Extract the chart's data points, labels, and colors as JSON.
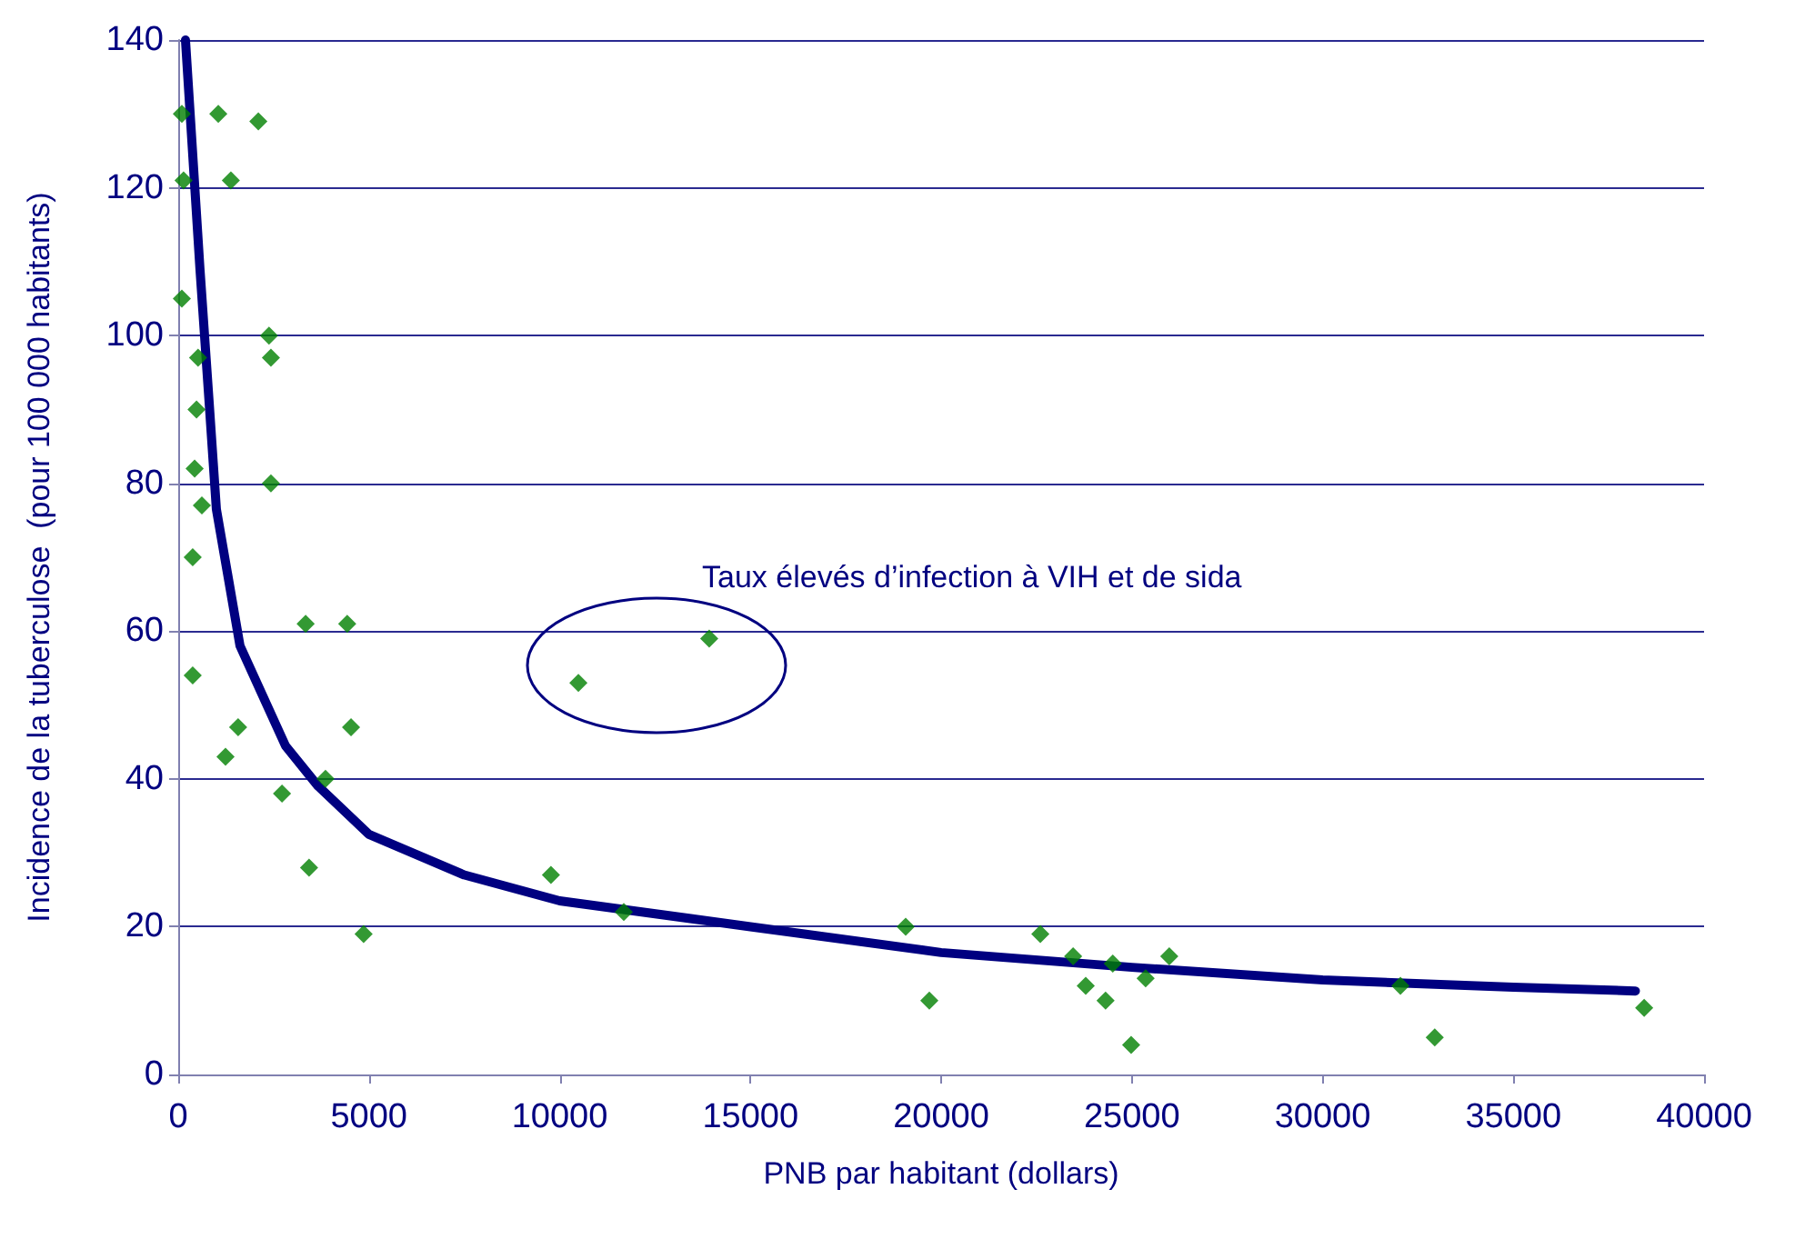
{
  "chart_data": {
    "type": "scatter",
    "xlabel": "PNB par habitant (dollars)",
    "ylabel": "Incidence de la tuberculose  (pour 100 000 habitants)",
    "xlim": [
      0,
      40000
    ],
    "xticks": [
      0,
      5000,
      10000,
      15000,
      20000,
      25000,
      30000,
      35000,
      40000
    ],
    "ylim": [
      0,
      140
    ],
    "yticks": [
      0,
      20,
      40,
      60,
      80,
      100,
      120,
      140
    ],
    "grid": "y",
    "annotations": [
      "Taux élevés d’infection à VIH et de sida"
    ],
    "series": [
      {
        "color": "#008000",
        "marker": "diamond",
        "x": [
          95,
          1050,
          2100,
          140,
          1380,
          95,
          2380,
          520,
          2430,
          480,
          430,
          2430,
          620,
          380,
          3340,
          4430,
          380,
          1570,
          4530,
          1240,
          2720,
          3860,
          3430,
          4860,
          10490,
          13920,
          9770,
          11680,
          19070,
          19690,
          22600,
          23460,
          23790,
          24310,
          24500,
          24980,
          25360,
          25980,
          32040,
          32940,
          38430
        ],
        "values": [
          130,
          130,
          129,
          121,
          121,
          105,
          100,
          97,
          97,
          90,
          82,
          80,
          77,
          70,
          61,
          61,
          54,
          47,
          47,
          43,
          38,
          40,
          28,
          19,
          53,
          59,
          27,
          22,
          20,
          10,
          19,
          16,
          12,
          10,
          15,
          4,
          13,
          16,
          12,
          5,
          9
        ]
      },
      {
        "type": "line",
        "color": "#000080",
        "marker": "none",
        "line_style": "solid",
        "x": [
          190,
          570,
          810,
          1000,
          1620,
          2810,
          3670,
          5000,
          7500,
          10000,
          15000,
          20000,
          25000,
          30000,
          35000,
          38200
        ],
        "values": [
          140,
          109,
          91,
          76.5,
          58,
          44.5,
          39,
          32.5,
          27,
          23.5,
          20,
          16.5,
          14.5,
          12.8,
          11.8,
          11.3
        ]
      }
    ]
  }
}
